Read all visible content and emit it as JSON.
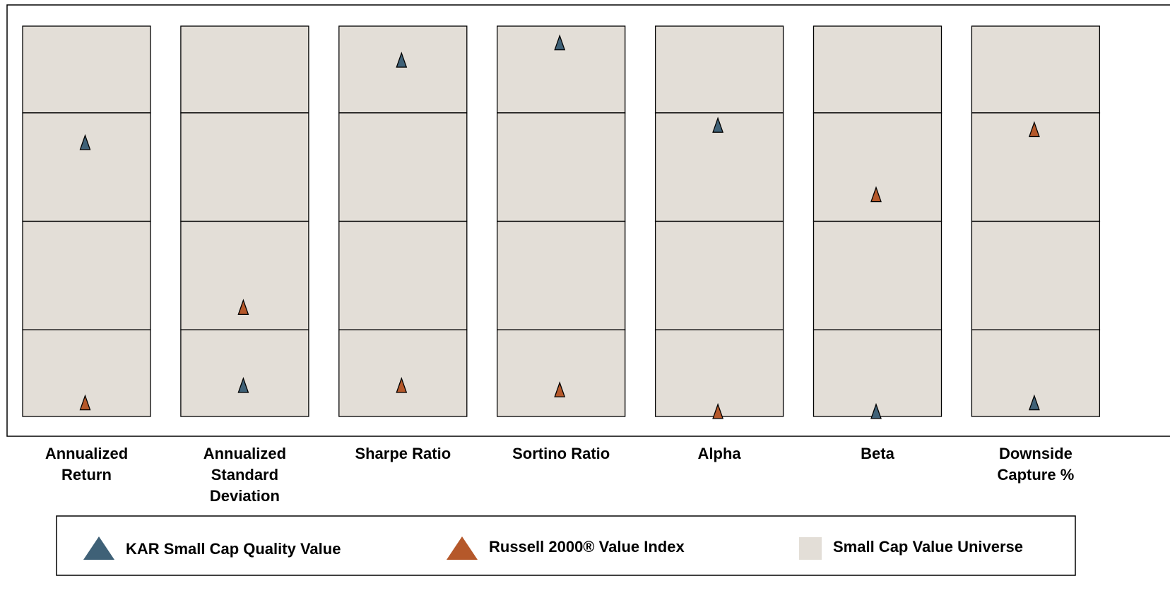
{
  "chart_data": {
    "type": "percentile-range",
    "categories": [
      "Annualized Return",
      "Annualized Standard Deviation",
      "Sharpe Ratio",
      "Sortino Ratio",
      "Alpha",
      "Beta",
      "Downside Capture %"
    ],
    "ylim": [
      5,
      95
    ],
    "y_reversed": true,
    "range_bounds": [
      5,
      25,
      50,
      75,
      95
    ],
    "range_name": "Small Cap Value Universe",
    "range_color": "#e3ded7",
    "series": [
      {
        "name": "KAR Small Cap Quality Value",
        "color": "#3f6177",
        "values": [
          32,
          88,
          13,
          9,
          28,
          94,
          92
        ]
      },
      {
        "name": "Russell 2000® Value Index",
        "color": "#b5582a",
        "values": [
          92,
          70,
          88,
          89,
          94,
          44,
          29
        ]
      }
    ]
  }
}
